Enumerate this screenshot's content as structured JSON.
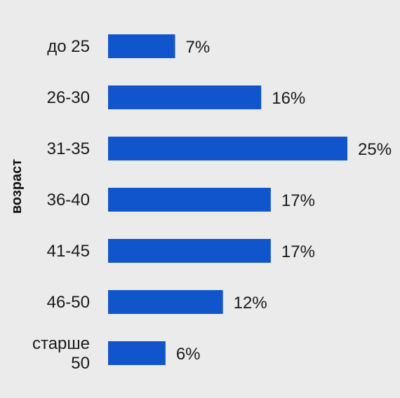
{
  "chart_data": {
    "type": "bar",
    "orientation": "horizontal",
    "ylabel": "возраст",
    "categories": [
      [
        "до 25"
      ],
      [
        "26-30"
      ],
      [
        "31-35"
      ],
      [
        "36-40"
      ],
      [
        "41-45"
      ],
      [
        "46-50"
      ],
      [
        "старше",
        "50"
      ]
    ],
    "values": [
      7,
      16,
      25,
      17,
      17,
      12,
      6
    ],
    "value_labels": [
      "7%",
      "16%",
      "25%",
      "17%",
      "17%",
      "12%",
      "6%"
    ],
    "xlim": [
      0,
      25
    ],
    "grid": false,
    "legend": "none"
  },
  "colors": {
    "bar": "#1155cc",
    "background": "#ebebeb"
  }
}
